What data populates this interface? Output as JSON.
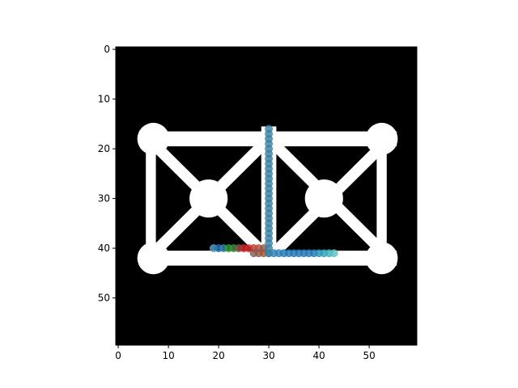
{
  "chart_data": {
    "type": "scatter",
    "title": "",
    "xlabel": "",
    "ylabel": "",
    "xlim": [
      -0.5,
      59.5
    ],
    "ylim": [
      59.5,
      -0.5
    ],
    "y_inverted": true,
    "grid": false,
    "legend": false,
    "background_image": {
      "kind": "binary-mask",
      "width": 60,
      "height": 60,
      "foreground_color": "#ffffff",
      "background_color": "#000000",
      "description_of_shapes": "truss-like frame: top bar, bottom bar, two side posts, center post, diagonal X braces with circular joints"
    },
    "x_ticks": [
      0,
      10,
      20,
      30,
      40,
      50
    ],
    "x_tick_labels": [
      "0",
      "10",
      "20",
      "30",
      "40",
      "50"
    ],
    "y_ticks": [
      0,
      10,
      20,
      30,
      40,
      50
    ],
    "y_tick_labels": [
      "0",
      "10",
      "20",
      "30",
      "40",
      "50"
    ],
    "marker_colors": [
      "#5aa1cf",
      "#1f77b4",
      "#2ca02c",
      "#d62728",
      "#8c564b",
      "#1f77b4",
      "#17becf"
    ],
    "series": [
      {
        "x": [
          19,
          20,
          21,
          22,
          23,
          24,
          25,
          26,
          27,
          28,
          29
        ],
        "y": [
          40,
          40,
          40,
          40,
          40,
          40,
          40,
          40,
          40,
          40,
          40
        ],
        "colors": [
          "#5aa1cf",
          "#1f77b4",
          "#3a86b8",
          "#2ca02c",
          "#3f8f4a",
          "#8c564b",
          "#d62728",
          "#d62728",
          "#c0392b",
          "#b14e3c",
          "#8c564b"
        ]
      },
      {
        "x": [
          27,
          28,
          29,
          30,
          31,
          32,
          33,
          34,
          35,
          36,
          37,
          38,
          39,
          40,
          41,
          42,
          43
        ],
        "y": [
          41,
          41,
          41,
          41,
          41,
          41,
          41,
          41,
          41,
          41,
          41,
          41,
          41,
          41,
          41,
          41,
          41
        ],
        "colors": [
          "#8c564b",
          "#8c564b",
          "#a0522d",
          "#2c7fb8",
          "#2c7fb8",
          "#2c7fb8",
          "#1f77b4",
          "#1f77b4",
          "#1f77b4",
          "#1f77b4",
          "#1f77b4",
          "#1f77b4",
          "#1f77b4",
          "#2a8fb4",
          "#2c9fb4",
          "#38b0b8",
          "#5cbfbf"
        ]
      },
      {
        "x": [
          30,
          30,
          30,
          30,
          30,
          30,
          30,
          30,
          30,
          30,
          30,
          30,
          30,
          30,
          30,
          30,
          30,
          30,
          30,
          30,
          30,
          30,
          30,
          30,
          30,
          30
        ],
        "y": [
          16,
          17,
          18,
          19,
          20,
          21,
          22,
          23,
          24,
          25,
          26,
          27,
          28,
          29,
          30,
          31,
          32,
          33,
          34,
          35,
          36,
          37,
          38,
          39,
          40,
          41
        ],
        "colors": [
          "#3b7fa3"
        ]
      }
    ]
  }
}
